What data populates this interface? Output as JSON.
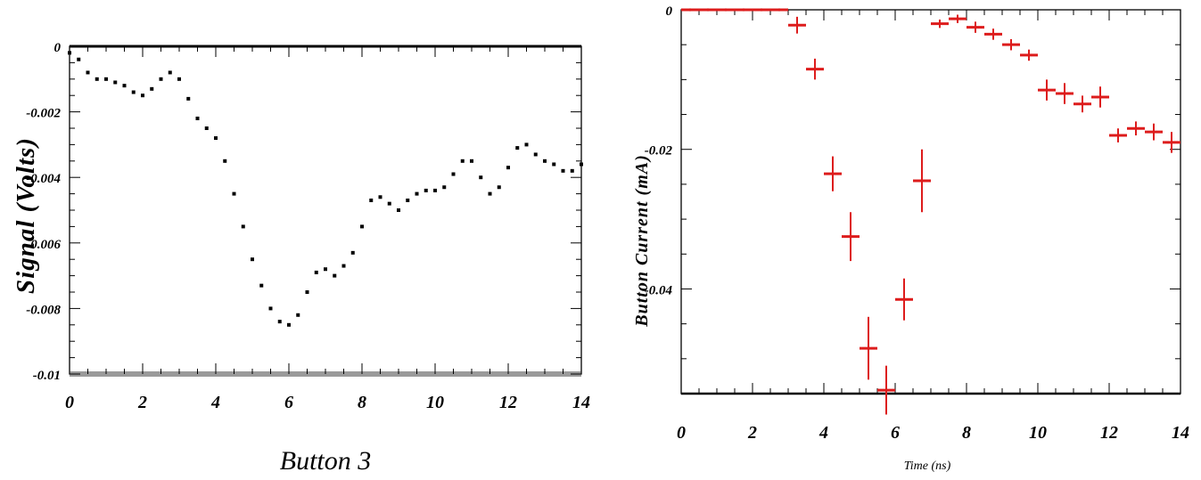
{
  "chart_data": [
    {
      "type": "scatter",
      "title": "",
      "xlabel": "Button 3",
      "ylabel": "Signal (Volts)",
      "xlim": [
        0,
        14
      ],
      "ylim": [
        -0.01,
        0
      ],
      "x_ticks": [
        "0",
        "2",
        "4",
        "6",
        "8",
        "10",
        "12",
        "14"
      ],
      "y_ticks": [
        "0",
        "-0.002",
        "-0.004",
        "-0.006",
        "-0.008",
        "-0.01"
      ],
      "grid": false,
      "marker_color": "#000000",
      "series": [
        {
          "x": [
            0.0,
            0.25,
            0.5,
            0.75,
            1.0,
            1.25,
            1.5,
            1.75,
            2.0,
            2.25,
            2.5,
            2.75,
            3.0,
            3.25,
            3.5,
            3.75,
            4.0,
            4.25,
            4.5,
            4.75,
            5.0,
            5.25,
            5.5,
            5.75,
            6.0,
            6.25,
            6.5,
            6.75,
            7.0,
            7.25,
            7.5,
            7.75,
            8.0,
            8.25,
            8.5,
            8.75,
            9.0,
            9.25,
            9.5,
            9.75,
            10.0,
            10.25,
            10.5,
            10.75,
            11.0,
            11.25,
            11.5,
            11.75,
            12.0,
            12.25,
            12.5,
            12.75,
            13.0,
            13.25,
            13.5,
            13.75,
            14.0
          ],
          "y": [
            -0.0002,
            -0.0004,
            -0.0008,
            -0.001,
            -0.001,
            -0.0011,
            -0.0012,
            -0.0014,
            -0.0015,
            -0.0013,
            -0.001,
            -0.0008,
            -0.001,
            -0.0016,
            -0.0022,
            -0.0025,
            -0.0028,
            -0.0035,
            -0.0045,
            -0.0055,
            -0.0065,
            -0.0073,
            -0.008,
            -0.0084,
            -0.0085,
            -0.0082,
            -0.0075,
            -0.0069,
            -0.0068,
            -0.007,
            -0.0067,
            -0.0063,
            -0.0055,
            -0.0047,
            -0.0046,
            -0.0048,
            -0.005,
            -0.0047,
            -0.0045,
            -0.0044,
            -0.0044,
            -0.0043,
            -0.0039,
            -0.0035,
            -0.0035,
            -0.004,
            -0.0045,
            -0.0043,
            -0.0037,
            -0.0031,
            -0.003,
            -0.0033,
            -0.0035,
            -0.0036,
            -0.0038,
            -0.0038,
            -0.0036
          ]
        }
      ]
    },
    {
      "type": "scatter",
      "title": "",
      "xlabel": "Time (ns)",
      "ylabel": "Button Current (mA)",
      "xlim": [
        0,
        14
      ],
      "ylim": [
        -0.055,
        0
      ],
      "x_ticks": [
        "0",
        "2",
        "4",
        "6",
        "8",
        "10",
        "12",
        "14"
      ],
      "y_ticks": [
        "0",
        "-0.02",
        "-0.04"
      ],
      "grid": false,
      "marker_color": "#dd1c1c",
      "series": [
        {
          "x": [
            0.25,
            0.75,
            1.25,
            1.75,
            2.25,
            2.75,
            3.25,
            3.75,
            4.25,
            4.75,
            5.25,
            5.75,
            6.25,
            6.75,
            7.25,
            7.75,
            8.25,
            8.75,
            9.25,
            9.75,
            10.25,
            10.75,
            11.25,
            11.75,
            12.25,
            12.75,
            13.25,
            13.75
          ],
          "y": [
            0,
            0,
            0,
            0,
            0,
            0,
            -0.0022,
            -0.0085,
            -0.0235,
            -0.0325,
            -0.0485,
            -0.0545,
            -0.0415,
            -0.0245,
            -0.002,
            -0.0013,
            -0.0025,
            -0.0035,
            -0.005,
            -0.0065,
            -0.0115,
            -0.012,
            -0.0135,
            -0.0125,
            -0.018,
            -0.017,
            -0.0175,
            -0.019
          ],
          "yerr": [
            0.0002,
            0.0002,
            0.0002,
            0.0002,
            0.0002,
            0.0002,
            0.0012,
            0.0015,
            0.0025,
            0.0035,
            0.0045,
            0.0035,
            0.003,
            0.0045,
            0.0006,
            0.0006,
            0.0008,
            0.0008,
            0.0008,
            0.0008,
            0.0015,
            0.0015,
            0.0012,
            0.0015,
            0.001,
            0.001,
            0.0012,
            0.0015
          ]
        }
      ]
    }
  ]
}
